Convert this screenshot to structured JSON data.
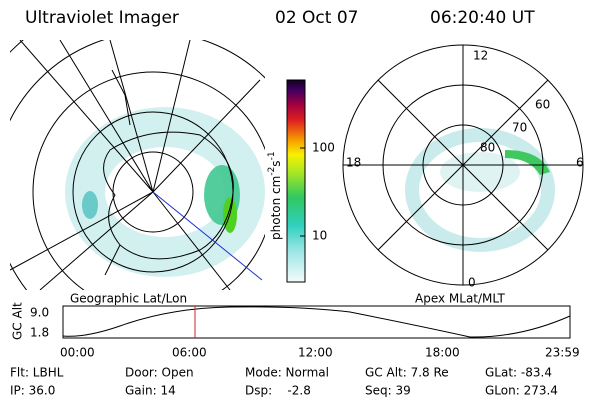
{
  "header": {
    "instrument": "Ultraviolet Imager",
    "date": "02 Oct 07",
    "time": "06:20:40 UT"
  },
  "left_panel": {
    "label": "Geographic Lat/Lon"
  },
  "right_panel": {
    "label": "Apex MLat/MLT",
    "mlt_labels": [
      "12",
      "18",
      "6",
      "0"
    ],
    "lat_labels": [
      "80",
      "70",
      "60"
    ]
  },
  "colorbar": {
    "label": [
      "photon cm",
      "-2",
      "s",
      "-1"
    ],
    "ticks": [
      "100",
      "10"
    ]
  },
  "timeline": {
    "axis_label": "GC Alt",
    "yticks": [
      "9.0",
      "1.8"
    ],
    "xticks": [
      "00:00",
      "06:00",
      "12:00",
      "18:00",
      "23:59"
    ]
  },
  "info": [
    [
      "Flt: LBHL",
      "Door: Open",
      "Mode: Normal",
      "GC Alt: 7.8 Re",
      "GLat: -83.4"
    ],
    [
      "IP: 36.0",
      "Gain: 14",
      "Dsp:    -2.8",
      "Seq: 39",
      "GLon: 273.4"
    ]
  ]
}
